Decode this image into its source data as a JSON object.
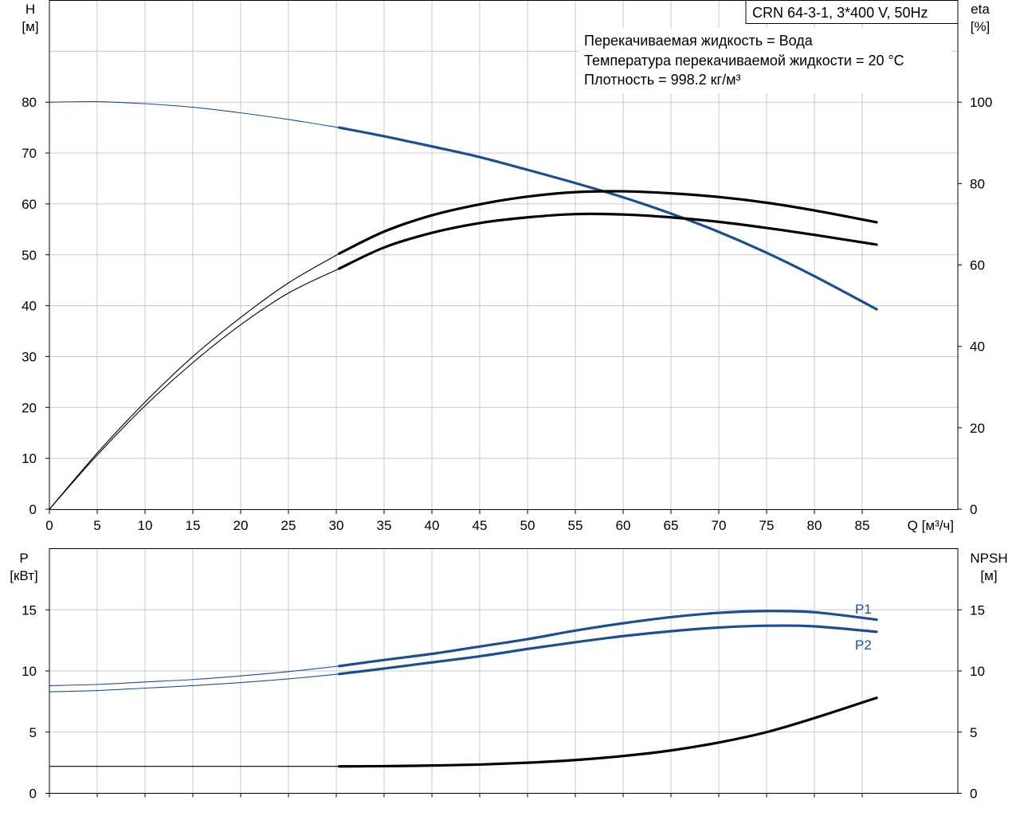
{
  "chart_data": [
    {
      "type": "line",
      "title": "CRN 64-3-1, 3*400 V, 50Hz",
      "annotations": [
        "Перекачиваемая жидкость = Вода",
        "Температура перекачиваемой жидкости = 20 °C",
        "Плотность = 998.2 кг/м³"
      ],
      "xlabel": "Q [м³/ч]",
      "ylabel_left": [
        "H",
        "[м]"
      ],
      "ylabel_right": [
        "eta",
        "[%]"
      ],
      "xlim": [
        0,
        95
      ],
      "ylim_left": [
        0,
        100
      ],
      "ylim_right": [
        0,
        125
      ],
      "x_ticks": [
        0,
        5,
        10,
        15,
        20,
        25,
        30,
        35,
        40,
        45,
        50,
        55,
        60,
        65,
        70,
        75,
        80,
        85
      ],
      "y_ticks_left": [
        0,
        10,
        20,
        30,
        40,
        50,
        60,
        70,
        80
      ],
      "y_ticks_right": [
        0,
        20,
        40,
        60,
        80,
        100
      ],
      "grid": true,
      "duty_start_q": 30.3,
      "series": [
        {
          "axis": "left",
          "color": "#1f4e8c",
          "x": [
            0,
            5,
            10,
            15,
            20,
            25,
            30.3,
            35,
            40,
            45,
            50,
            55,
            60,
            65,
            70,
            75,
            80,
            86.5
          ],
          "y": [
            80,
            80.1,
            79.7,
            79.0,
            77.9,
            76.6,
            75.0,
            73.3,
            71.3,
            69.2,
            66.7,
            64.1,
            61.3,
            58.1,
            54.5,
            50.4,
            45.8,
            39.3
          ]
        },
        {
          "axis": "right",
          "color": "#000000",
          "x": [
            0,
            5,
            10,
            15,
            20,
            25,
            30.3,
            35,
            40,
            45,
            50,
            55,
            60,
            65,
            70,
            75,
            80,
            86.5
          ],
          "y": [
            0,
            13.8,
            26.3,
            37.5,
            47.1,
            55.6,
            62.8,
            68.2,
            72.2,
            74.9,
            76.8,
            77.9,
            78.1,
            77.6,
            76.7,
            75.3,
            73.4,
            70.5
          ]
        },
        {
          "axis": "right",
          "color": "#000000",
          "x": [
            0,
            5,
            10,
            15,
            20,
            25,
            30.3,
            35,
            40,
            45,
            50,
            55,
            60,
            65,
            70,
            75,
            80,
            86.5
          ],
          "y": [
            0,
            13.3,
            25.4,
            36.0,
            45.3,
            53.1,
            59.1,
            64.3,
            67.9,
            70.3,
            71.7,
            72.5,
            72.4,
            71.7,
            70.6,
            69.1,
            67.4,
            65.0
          ]
        }
      ]
    },
    {
      "type": "line",
      "ylabel_left": [
        "P",
        "[кВт]"
      ],
      "ylabel_right": [
        "NPSH",
        "[м]"
      ],
      "xlim": [
        0,
        95
      ],
      "ylim_left": [
        0,
        20
      ],
      "ylim_right": [
        0,
        20
      ],
      "y_ticks_left": [
        0,
        5,
        10,
        15
      ],
      "y_ticks_right": [
        0,
        5,
        10,
        15
      ],
      "grid": true,
      "duty_start_q": 30.3,
      "series": [
        {
          "name": "P1",
          "axis": "left",
          "color": "#1f4e8c",
          "x": [
            0,
            5,
            10,
            15,
            20,
            25,
            30.3,
            35,
            40,
            45,
            50,
            55,
            60,
            65,
            70,
            75,
            80,
            86.5
          ],
          "y": [
            8.8,
            8.9,
            9.1,
            9.3,
            9.6,
            9.95,
            10.4,
            10.9,
            11.4,
            12.0,
            12.6,
            13.3,
            13.9,
            14.4,
            14.75,
            14.9,
            14.8,
            14.2
          ]
        },
        {
          "name": "P2",
          "axis": "left",
          "color": "#1f4e8c",
          "x": [
            0,
            5,
            10,
            15,
            20,
            25,
            30.3,
            35,
            40,
            45,
            50,
            55,
            60,
            65,
            70,
            75,
            80,
            86.5
          ],
          "y": [
            8.3,
            8.4,
            8.6,
            8.8,
            9.05,
            9.35,
            9.75,
            10.2,
            10.7,
            11.2,
            11.8,
            12.35,
            12.85,
            13.25,
            13.55,
            13.7,
            13.65,
            13.2
          ]
        },
        {
          "axis": "right",
          "color": "#000000",
          "x": [
            0,
            10,
            20,
            30.3,
            35,
            40,
            45,
            50,
            55,
            60,
            65,
            70,
            75,
            80,
            86.5
          ],
          "y": [
            2.2,
            2.2,
            2.2,
            2.2,
            2.22,
            2.27,
            2.35,
            2.5,
            2.72,
            3.05,
            3.5,
            4.15,
            5.0,
            6.15,
            7.8
          ]
        }
      ]
    }
  ]
}
